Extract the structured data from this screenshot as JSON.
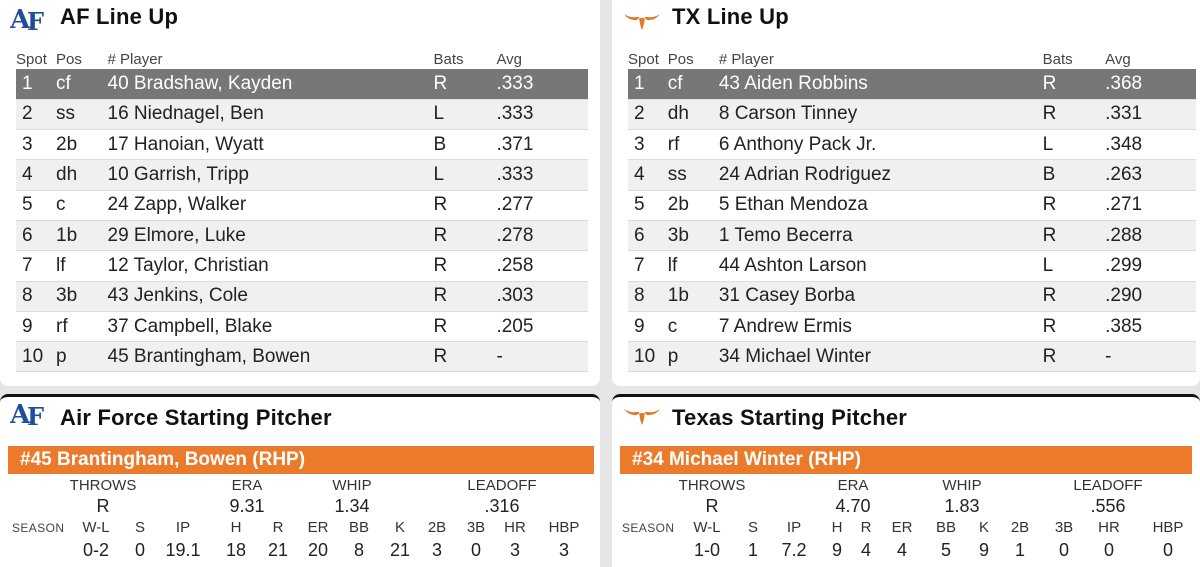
{
  "af_lineup": {
    "title": "AF Line Up",
    "headers": {
      "spot": "Spot",
      "pos": "Pos",
      "player": "# Player",
      "bats": "Bats",
      "avg": "Avg"
    },
    "rows": [
      {
        "spot": "1",
        "pos": "cf",
        "player": "40 Bradshaw, Kayden",
        "bats": "R",
        "avg": ".333"
      },
      {
        "spot": "2",
        "pos": "ss",
        "player": "16 Niednagel, Ben",
        "bats": "L",
        "avg": ".333"
      },
      {
        "spot": "3",
        "pos": "2b",
        "player": "17 Hanoian, Wyatt",
        "bats": "B",
        "avg": ".371"
      },
      {
        "spot": "4",
        "pos": "dh",
        "player": "10 Garrish, Tripp",
        "bats": "L",
        "avg": ".333"
      },
      {
        "spot": "5",
        "pos": "c",
        "player": "24 Zapp, Walker",
        "bats": "R",
        "avg": ".277"
      },
      {
        "spot": "6",
        "pos": "1b",
        "player": "29 Elmore, Luke",
        "bats": "R",
        "avg": ".278"
      },
      {
        "spot": "7",
        "pos": "lf",
        "player": "12 Taylor, Christian",
        "bats": "R",
        "avg": ".258"
      },
      {
        "spot": "8",
        "pos": "3b",
        "player": "43 Jenkins, Cole",
        "bats": "R",
        "avg": ".303"
      },
      {
        "spot": "9",
        "pos": "rf",
        "player": "37 Campbell, Blake",
        "bats": "R",
        "avg": ".205"
      },
      {
        "spot": "10",
        "pos": "p",
        "player": "45 Brantingham, Bowen",
        "bats": "R",
        "avg": "-"
      }
    ]
  },
  "tx_lineup": {
    "title": "TX Line Up",
    "headers": {
      "spot": "Spot",
      "pos": "Pos",
      "player": "# Player",
      "bats": "Bats",
      "avg": "Avg"
    },
    "rows": [
      {
        "spot": "1",
        "pos": "cf",
        "player": "43 Aiden Robbins",
        "bats": "R",
        "avg": ".368"
      },
      {
        "spot": "2",
        "pos": "dh",
        "player": "8 Carson Tinney",
        "bats": "R",
        "avg": ".331"
      },
      {
        "spot": "3",
        "pos": "rf",
        "player": "6 Anthony Pack Jr.",
        "bats": "L",
        "avg": ".348"
      },
      {
        "spot": "4",
        "pos": "ss",
        "player": "24 Adrian Rodriguez",
        "bats": "B",
        "avg": ".263"
      },
      {
        "spot": "5",
        "pos": "2b",
        "player": "5 Ethan Mendoza",
        "bats": "R",
        "avg": ".271"
      },
      {
        "spot": "6",
        "pos": "3b",
        "player": "1 Temo Becerra",
        "bats": "R",
        "avg": ".288"
      },
      {
        "spot": "7",
        "pos": "lf",
        "player": "44 Ashton Larson",
        "bats": "L",
        "avg": ".299"
      },
      {
        "spot": "8",
        "pos": "1b",
        "player": "31 Casey Borba",
        "bats": "R",
        "avg": ".290"
      },
      {
        "spot": "9",
        "pos": "c",
        "player": "7 Andrew Ermis",
        "bats": "R",
        "avg": ".385"
      },
      {
        "spot": "10",
        "pos": "p",
        "player": "34 Michael Winter",
        "bats": "R",
        "avg": "-"
      }
    ]
  },
  "af_pitcher": {
    "title": "Air Force Starting Pitcher",
    "name": "#45 Brantingham, Bowen (RHP)",
    "throws_label": "THROWS",
    "era_label": "ERA",
    "whip_label": "WHIP",
    "leadoff_label": "LEADOFF",
    "throws": "R",
    "era": "9.31",
    "whip": "1.34",
    "leadoff": ".316",
    "season_label": "SEASON",
    "stat_labels": [
      "W-L",
      "S",
      "IP",
      "H",
      "R",
      "ER",
      "BB",
      "K",
      "2B",
      "3B",
      "HR",
      "HBP"
    ],
    "stat_values": [
      "0-2",
      "0",
      "19.1",
      "18",
      "21",
      "20",
      "8",
      "21",
      "3",
      "0",
      "3",
      "3"
    ]
  },
  "tx_pitcher": {
    "title": "Texas Starting Pitcher",
    "name": "#34 Michael Winter (RHP)",
    "throws_label": "THROWS",
    "era_label": "ERA",
    "whip_label": "WHIP",
    "leadoff_label": "LEADOFF",
    "throws": "R",
    "era": "4.70",
    "whip": "1.83",
    "leadoff": ".556",
    "season_label": "SEASON",
    "stat_labels": [
      "W-L",
      "S",
      "IP",
      "H",
      "R",
      "ER",
      "BB",
      "K",
      "2B",
      "3B",
      "HR",
      "HBP"
    ],
    "stat_values": [
      "1-0",
      "1",
      "7.2",
      "9",
      "4",
      "4",
      "5",
      "9",
      "1",
      "0",
      "0",
      "0"
    ]
  },
  "logos": {
    "af": "air-force-logo-icon",
    "tx": "longhorn-logo-icon",
    "af_color": "#1f4e9c",
    "tx_color": "#e07b27"
  },
  "colors": {
    "accent": "#ec7a2b",
    "selected_row": "#777777"
  }
}
